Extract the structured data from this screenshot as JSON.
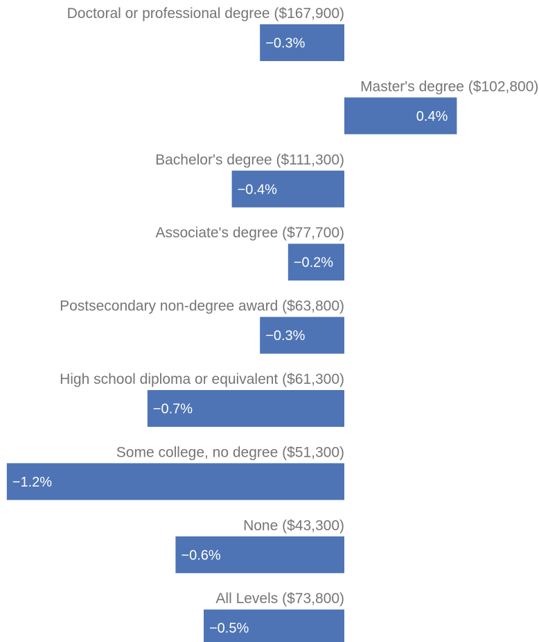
{
  "chart_data": {
    "type": "bar",
    "orientation": "horizontal",
    "categories": [
      "Doctoral or professional degree ($167,900)",
      "Master's degree ($102,800)",
      "Bachelor's degree ($111,300)",
      "Associate's degree ($77,700)",
      "Postsecondary non-degree award ($63,800)",
      "High school diploma or equivalent ($61,300)",
      "Some college, no degree ($51,300)",
      "None ($43,300)",
      "All Levels ($73,800)"
    ],
    "values": [
      -0.3,
      0.4,
      -0.4,
      -0.2,
      -0.3,
      -0.7,
      -1.2,
      -0.6,
      -0.5
    ],
    "value_labels": [
      "−0.3%",
      "0.4%",
      "−0.4%",
      "−0.2%",
      "−0.3%",
      "−0.7%",
      "−1.2%",
      "−0.6%",
      "−0.5%"
    ],
    "xlim": [
      -1.2,
      0.4
    ],
    "grid": false,
    "legend": "none",
    "bar_color": "#4e74b5",
    "label_color": "#757575",
    "value_label_color": "#ffffff"
  }
}
